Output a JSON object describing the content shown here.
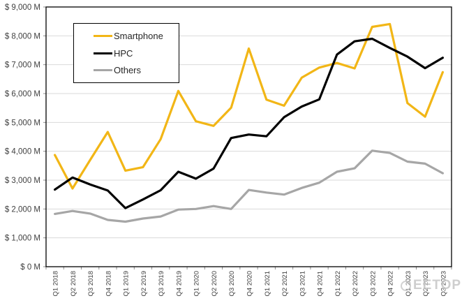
{
  "watermark": {
    "text": "EETOP"
  },
  "chart_data": {
    "type": "line",
    "title": "",
    "xlabel": "",
    "ylabel": "",
    "unit": "$ M",
    "grid": true,
    "legend_position": "inside-top-left",
    "categories": [
      "Q1 2018",
      "Q2 2018",
      "Q3 2018",
      "Q4 2018",
      "Q1 2019",
      "Q2 2019",
      "Q3 2019",
      "Q4 2019",
      "Q1 2020",
      "Q2 2020",
      "Q3 2020",
      "Q4 2020",
      "Q1 2021",
      "Q2 2021",
      "Q3 2021",
      "Q4 2021",
      "Q1 2022",
      "Q2 2022",
      "Q3 2022",
      "Q4 2022",
      "Q1 2023",
      "Q2 2023",
      "Q3 2023"
    ],
    "series": [
      {
        "name": "Smartphone",
        "color": "#F2B616",
        "values": [
          3870,
          2710,
          3700,
          4670,
          3330,
          3450,
          4420,
          6090,
          5040,
          4880,
          5510,
          7560,
          5790,
          5580,
          6550,
          6900,
          7060,
          6870,
          8310,
          8410,
          5670,
          5200,
          6740
        ]
      },
      {
        "name": "HPC",
        "color": "#000000",
        "values": [
          2670,
          3090,
          2850,
          2640,
          2030,
          2330,
          2650,
          3290,
          3050,
          3400,
          4460,
          4580,
          4520,
          5180,
          5550,
          5800,
          7350,
          7810,
          7900,
          7580,
          7280,
          6880,
          7240
        ]
      },
      {
        "name": "Others",
        "color": "#A6A6A6",
        "values": [
          1830,
          1930,
          1840,
          1620,
          1560,
          1670,
          1740,
          1980,
          2000,
          2100,
          2000,
          2660,
          2570,
          2500,
          2730,
          2910,
          3290,
          3410,
          4020,
          3940,
          3640,
          3570,
          3240
        ]
      }
    ],
    "y_axis": {
      "min": 0,
      "max": 9000,
      "step": 1000,
      "tick_labels_top_to_bottom": [
        "$ 9,000 M",
        "$ 8,000 M",
        "$ 7,000 M",
        "$ 6,000 M",
        "$ 5,000 M",
        "$ 4,000 M",
        "$ 3,000 M",
        "$ 2,000 M",
        "$ 1,000 M",
        "$ 0 M"
      ]
    },
    "colors": {
      "gridline": "#D9D9D9",
      "axis_border": "#000000",
      "tick": "#8C8C8C",
      "axis_text": "#404040"
    }
  }
}
